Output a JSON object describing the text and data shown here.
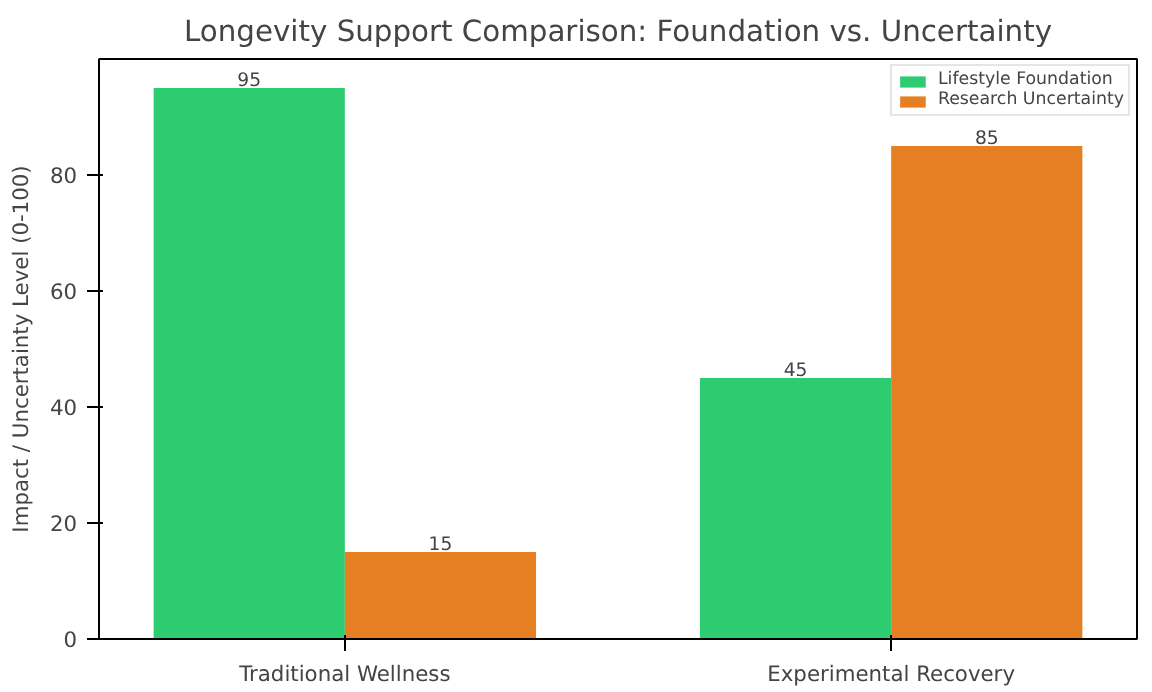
{
  "chart_data": {
    "type": "bar",
    "title": "Longevity Support Comparison: Foundation vs. Uncertainty",
    "ylabel": "Impact / Uncertainty Level (0-100)",
    "categories": [
      "Traditional Wellness",
      "Experimental Recovery"
    ],
    "series": [
      {
        "name": "Lifestyle Foundation",
        "color": "#2ecc71",
        "values": [
          95,
          45
        ]
      },
      {
        "name": "Research Uncertainty",
        "color": "#e67e22",
        "values": [
          15,
          85
        ]
      }
    ],
    "ylim": [
      0,
      100
    ],
    "yticks": [
      0,
      20,
      40,
      60,
      80
    ],
    "legend": "top right",
    "data_labels": true,
    "grid": false
  }
}
